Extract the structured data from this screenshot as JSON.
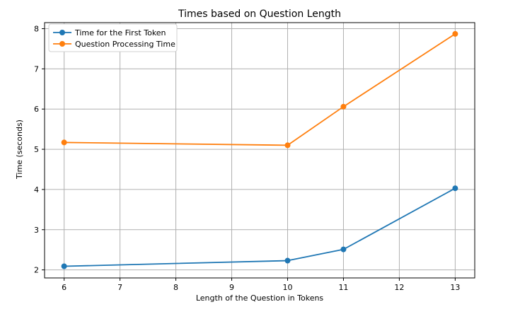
{
  "chart_data": {
    "type": "line",
    "title": "Times based on Question Length",
    "xlabel": "Length of the Question in Tokens",
    "ylabel": "Time (seconds)",
    "xlim": [
      5.65,
      13.35
    ],
    "ylim": [
      1.8,
      8.15
    ],
    "xticks": [
      6,
      7,
      8,
      9,
      10,
      11,
      12,
      13
    ],
    "yticks": [
      2,
      3,
      4,
      5,
      6,
      7,
      8
    ],
    "grid": true,
    "legend_position": "top-left",
    "x": [
      6,
      10,
      11,
      13
    ],
    "series": [
      {
        "name": "Time for the First Token",
        "color": "#1f77b4",
        "values": [
          2.09,
          2.23,
          2.51,
          4.03
        ]
      },
      {
        "name": "Question Processing Time",
        "color": "#ff7f0e",
        "values": [
          5.17,
          5.1,
          6.06,
          7.87
        ]
      }
    ]
  }
}
